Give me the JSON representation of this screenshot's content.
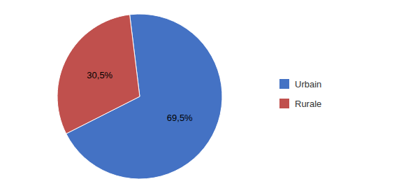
{
  "chart_data": {
    "type": "pie",
    "categories": [
      "Urbain",
      "Rurale"
    ],
    "values": [
      69.5,
      30.5
    ],
    "value_labels": [
      "69,5%",
      "30,5%"
    ],
    "colors": [
      "#4472C4",
      "#C0504D"
    ],
    "data_labels": true,
    "legend": "right"
  }
}
